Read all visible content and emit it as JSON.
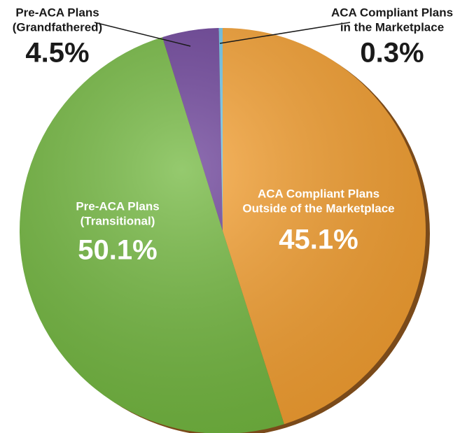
{
  "chart_data": {
    "type": "pie",
    "categories": [
      [
        "ACA Compliant Plans",
        "Outside of the Marketplace"
      ],
      [
        "Pre-ACA Plans",
        "(Transitional)"
      ],
      [
        "Pre-ACA Plans",
        "(Grandfathered)"
      ],
      [
        "ACA Compliant Plans",
        "in the Marketplace"
      ]
    ],
    "values": [
      45.1,
      50.1,
      4.5,
      0.3
    ],
    "value_labels": [
      "45.1%",
      "50.1%",
      "4.5%",
      "0.3%"
    ],
    "colors": [
      "#f6a030",
      "#72b83e",
      "#6a3f98",
      "#6ec6ea"
    ]
  }
}
